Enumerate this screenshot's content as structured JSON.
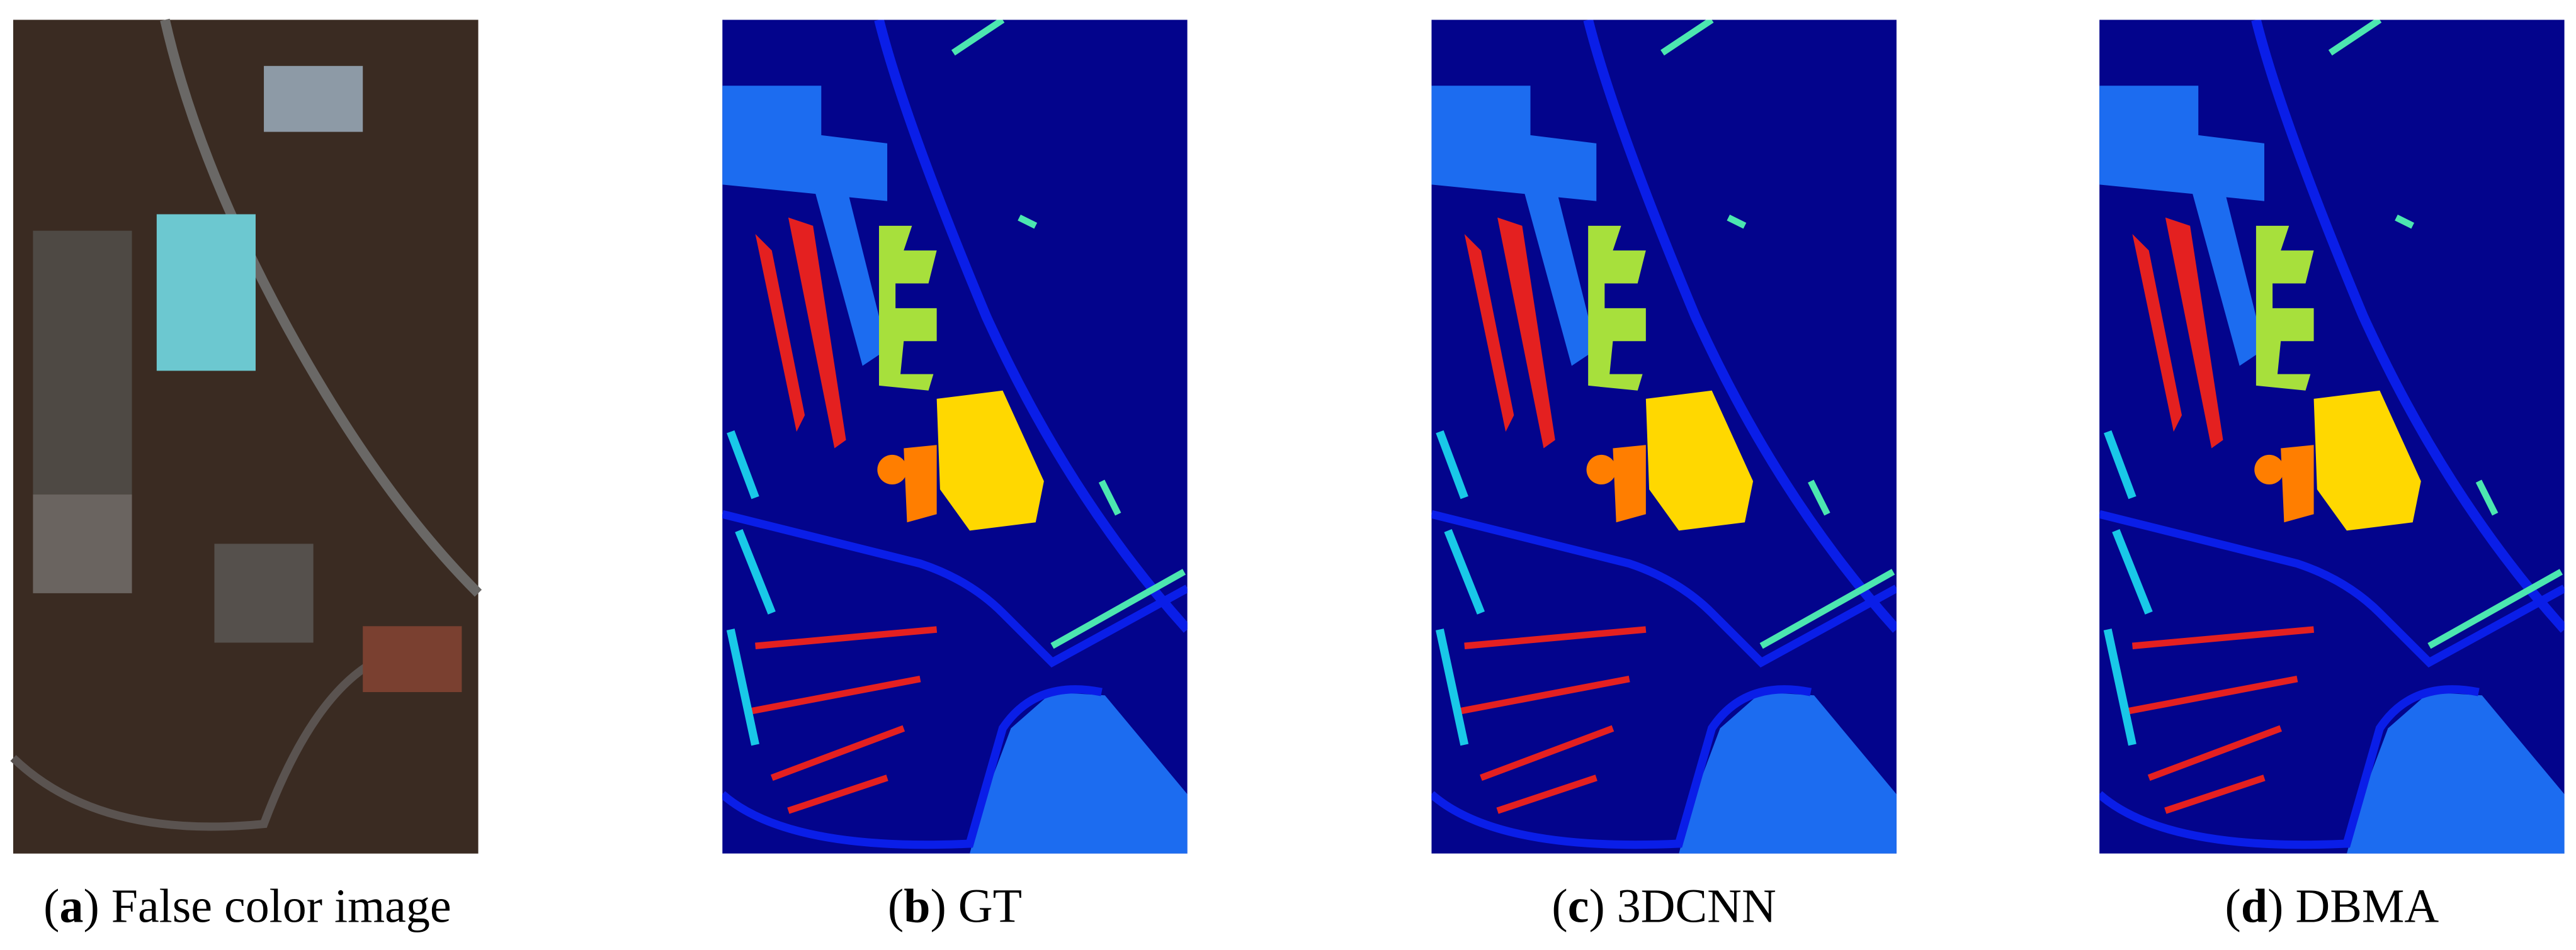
{
  "panels": [
    {
      "prefix": "(",
      "letter": "a",
      "text": ") False color image"
    },
    {
      "prefix": "(",
      "letter": "b",
      "text": ") GT"
    },
    {
      "prefix": "(",
      "letter": "c",
      "text": ") 3DCNN"
    },
    {
      "prefix": "(",
      "letter": "d",
      "text": ") DBMA"
    }
  ]
}
